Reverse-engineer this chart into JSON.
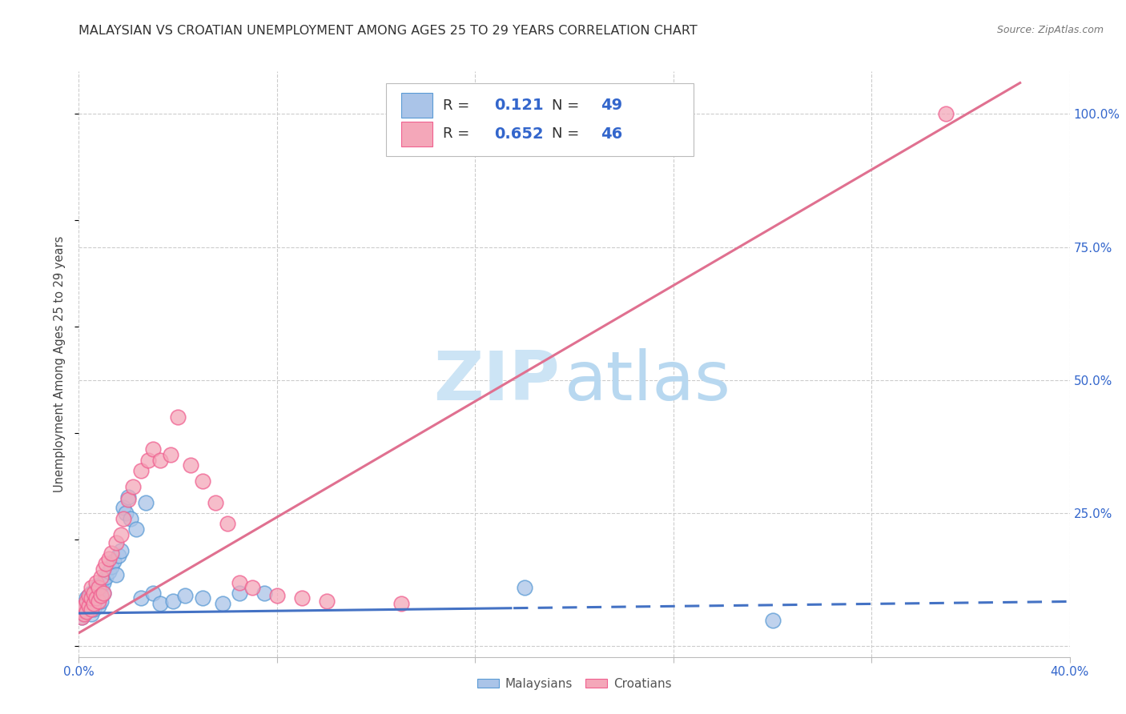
{
  "title": "MALAYSIAN VS CROATIAN UNEMPLOYMENT AMONG AGES 25 TO 29 YEARS CORRELATION CHART",
  "source": "Source: ZipAtlas.com",
  "ylabel": "Unemployment Among Ages 25 to 29 years",
  "xlim": [
    0.0,
    0.4
  ],
  "ylim": [
    -0.02,
    1.08
  ],
  "xticks": [
    0.0,
    0.08,
    0.16,
    0.24,
    0.32,
    0.4
  ],
  "xticklabels": [
    "0.0%",
    "",
    "",
    "",
    "",
    "40.0%"
  ],
  "yticks_right": [
    0.25,
    0.5,
    0.75,
    1.0
  ],
  "yticklabels_right": [
    "25.0%",
    "50.0%",
    "75.0%",
    "100.0%"
  ],
  "grid_color": "#cccccc",
  "background_color": "#ffffff",
  "malaysian_color": "#aac4e8",
  "croatian_color": "#f4a7b9",
  "malaysian_edge_color": "#5b9bd5",
  "croatian_edge_color": "#f06090",
  "malaysian_line_color": "#4472c4",
  "croatian_line_color": "#e07090",
  "R_malaysian": "0.121",
  "N_malaysian": "49",
  "R_croatian": "0.652",
  "N_croatian": "46",
  "legend_label_color": "#333333",
  "legend_value_color": "#3366cc",
  "watermark_zip_color": "#cce4f5",
  "watermark_atlas_color": "#b8d8f0",
  "mal_line_slope": 0.055,
  "mal_line_intercept": 0.062,
  "mal_line_solid_end": 0.175,
  "cro_line_slope": 2.72,
  "cro_line_intercept": 0.025,
  "title_fontsize": 11.5,
  "source_fontsize": 9,
  "tick_fontsize": 11,
  "ylabel_fontsize": 10.5
}
